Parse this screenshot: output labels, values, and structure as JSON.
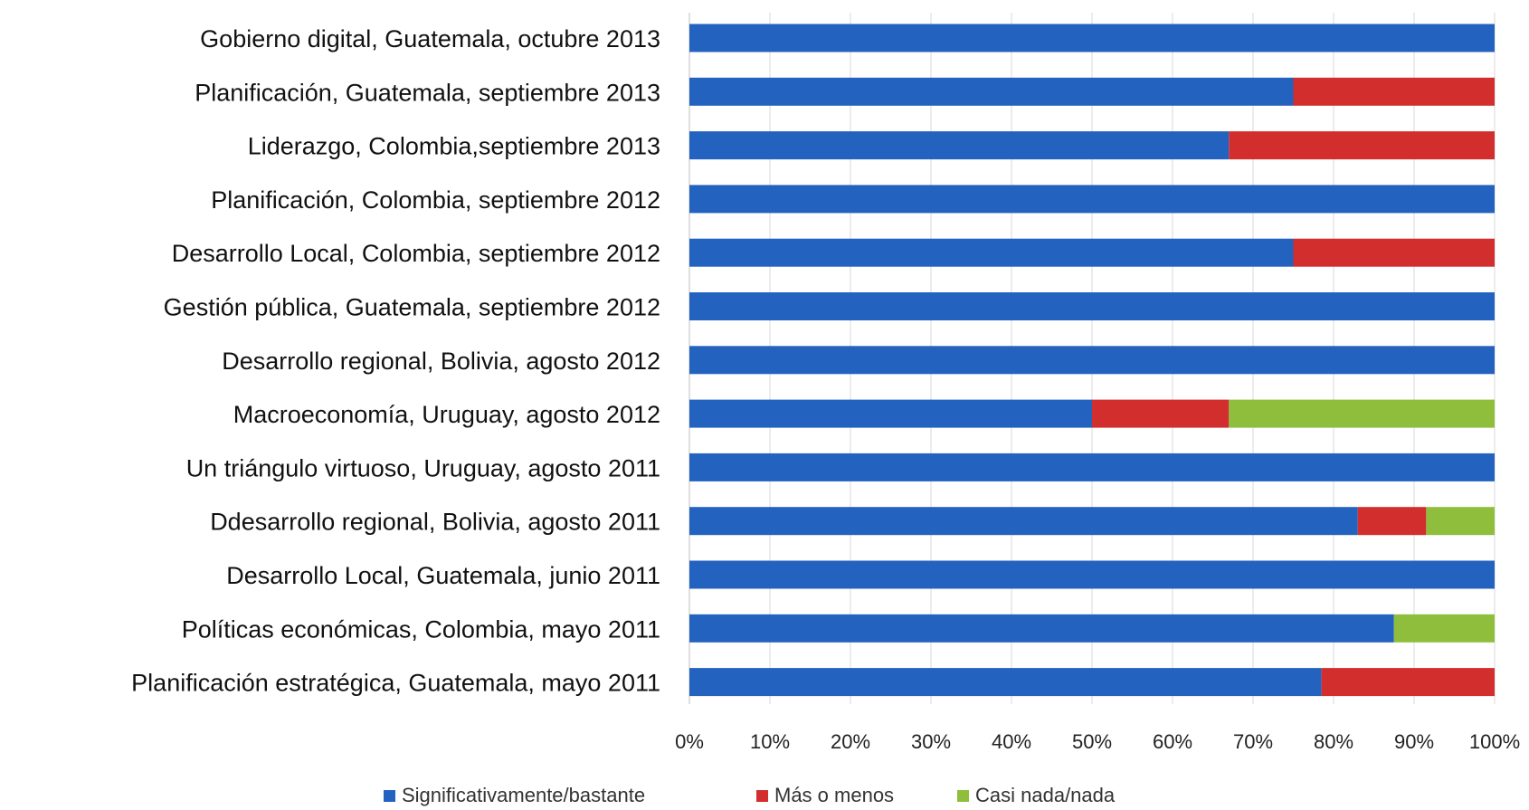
{
  "chart_data": {
    "type": "bar",
    "orientation": "horizontal",
    "stacked": "percent",
    "categories": [
      "Gobierno digital, Guatemala,  octubre 2013",
      "Planificación,  Guatemala, septiembre 2013",
      "Liderazgo, Colombia,septiembre 2013",
      "Planificación,  Colombia,  septiembre 2012",
      "Desarrollo Local, Colombia, septiembre 2012",
      "Gestión pública,  Guatemala, septiembre 2012",
      "Desarrollo regional, Bolivia,  agosto 2012",
      "Macroeconomía, Uruguay,  agosto 2012",
      "Un triángulo virtuoso,  Uruguay,  agosto 2011",
      "Ddesarrollo regional,  Bolivia,  agosto 2011",
      "Desarrollo Local, Guatemala, junio 2011",
      "Políticas económicas,  Colombia,  mayo 2011",
      "Planificación estratégica, Guatemala,  mayo 2011"
    ],
    "series": [
      {
        "name": "Significativamente/bastante",
        "color": "#2462c0",
        "values": [
          100,
          75,
          67,
          100,
          75,
          100,
          100,
          50,
          100,
          83,
          100,
          87.5,
          78.5
        ]
      },
      {
        "name": "Más o menos",
        "color": "#d22e2e",
        "values": [
          0,
          25,
          33,
          0,
          25,
          0,
          0,
          17,
          0,
          8.5,
          0,
          0,
          21.5
        ]
      },
      {
        "name": "Casi nada/nada",
        "color": "#8ebe3c",
        "values": [
          0,
          0,
          0,
          0,
          0,
          0,
          0,
          33,
          0,
          8.5,
          0,
          12.5,
          0
        ]
      }
    ],
    "xlim": [
      0,
      100
    ],
    "xticks": [
      "0%",
      "10%",
      "20%",
      "30%",
      "40%",
      "50%",
      "60%",
      "70%",
      "80%",
      "90%",
      "100%"
    ],
    "grid": true,
    "legend_position": "bottom",
    "title": "",
    "xlabel": "",
    "ylabel": ""
  }
}
